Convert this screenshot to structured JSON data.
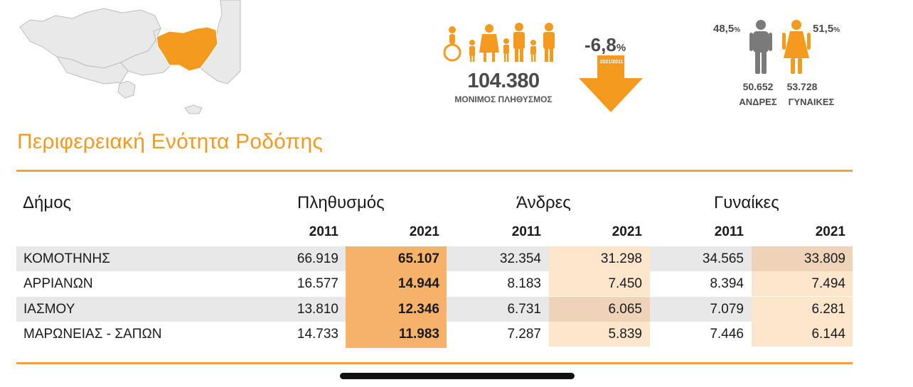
{
  "colors": {
    "accent": "#f29a1f",
    "map_highlight": "#f39a1f",
    "map_land": "#e9e9e9",
    "row_stripe": "#e8e8e8",
    "pop_2021_col": "#f6b26b",
    "light_peach": "#fde6cc",
    "tan": "#efd3b8"
  },
  "stats": {
    "population": "104.380",
    "population_label": "ΜΟΝΙΜΟΣ ΠΛΗΘΥΣΜΟΣ",
    "change_value": "-6,8",
    "change_unit": "%",
    "change_period": "2021/2011",
    "male_pct": "48,5",
    "female_pct": "51,5",
    "pct_unit": "%",
    "male_count": "50.652",
    "female_count": "53.728",
    "male_label": "ΑΝΔΡΕΣ",
    "female_label": "ΓΥΝΑΙΚΕΣ"
  },
  "region_title": "Περιφερειακή Ενότητα Ροδόπης",
  "table": {
    "headers": {
      "municipality": "Δήμος",
      "population": "Πληθυσμός",
      "men": "Άνδρες",
      "women": "Γυναίκες"
    },
    "years": [
      "2011",
      "2021",
      "2011",
      "2021",
      "2011",
      "2021"
    ],
    "rows": [
      {
        "name": "ΚΟΜΟΤΗΝΗΣ",
        "pop_2011": "66.919",
        "pop_2021": "65.107",
        "men_2011": "32.354",
        "men_2021": "31.298",
        "women_2011": "34.565",
        "women_2021": "33.809"
      },
      {
        "name": "ΑΡΡΙΑΝΩΝ",
        "pop_2011": "16.577",
        "pop_2021": "14.944",
        "men_2011": "8.183",
        "men_2021": "7.450",
        "women_2011": "8.394",
        "women_2021": "7.494"
      },
      {
        "name": "ΙΑΣΜΟΥ",
        "pop_2011": "13.810",
        "pop_2021": "12.346",
        "men_2011": "6.731",
        "men_2021": "6.065",
        "women_2011": "7.079",
        "women_2021": "6.281"
      },
      {
        "name": "ΜΑΡΩΝΕΙΑΣ - ΣΑΠΩΝ",
        "pop_2011": "14.733",
        "pop_2021": "11.983",
        "men_2011": "7.287",
        "men_2021": "5.839",
        "women_2011": "7.446",
        "women_2021": "6.144"
      }
    ]
  }
}
